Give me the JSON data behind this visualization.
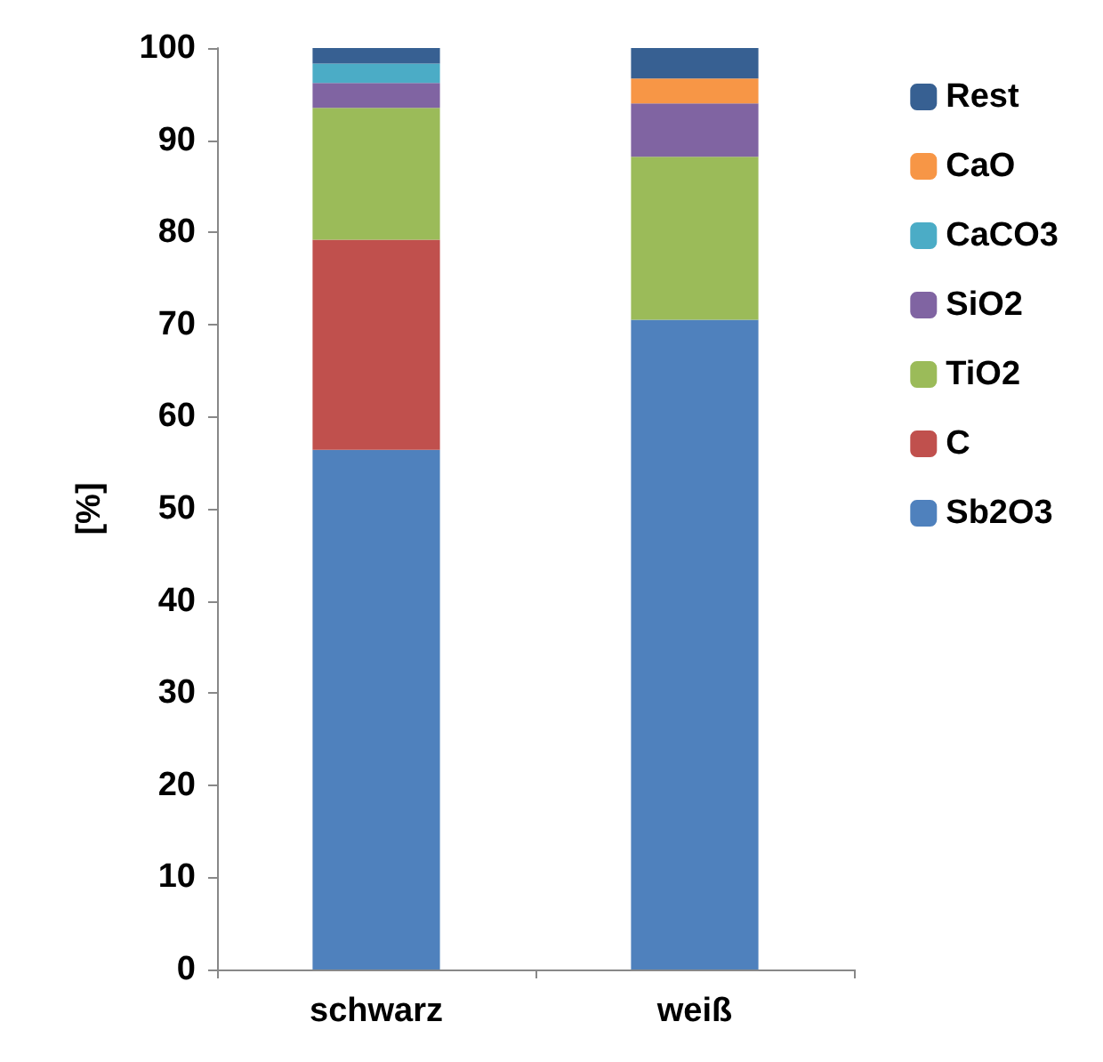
{
  "chart_data": {
    "type": "bar",
    "stacked": true,
    "ylabel": "[%]",
    "categories": [
      "schwarz",
      "weiß"
    ],
    "series": [
      {
        "name": "Sb2O3",
        "color": "#4f81bd",
        "values": [
          56.4,
          70.5
        ]
      },
      {
        "name": "C",
        "color": "#c0504d",
        "values": [
          22.8,
          0
        ]
      },
      {
        "name": "TiO2",
        "color": "#9bbb59",
        "values": [
          14.3,
          17.7
        ]
      },
      {
        "name": "SiO2",
        "color": "#8064a2",
        "values": [
          2.7,
          5.8
        ]
      },
      {
        "name": "CaCO3",
        "color": "#4bacc6",
        "values": [
          2.1,
          0
        ]
      },
      {
        "name": "CaO",
        "color": "#f79646",
        "values": [
          0,
          2.7
        ]
      },
      {
        "name": "Rest",
        "color": "#376092",
        "values": [
          1.7,
          3.3
        ]
      }
    ],
    "ylim": [
      0,
      100
    ],
    "yticks": [
      0,
      10,
      20,
      30,
      40,
      50,
      60,
      70,
      80,
      90,
      100
    ],
    "grid": false,
    "legend": "right"
  }
}
